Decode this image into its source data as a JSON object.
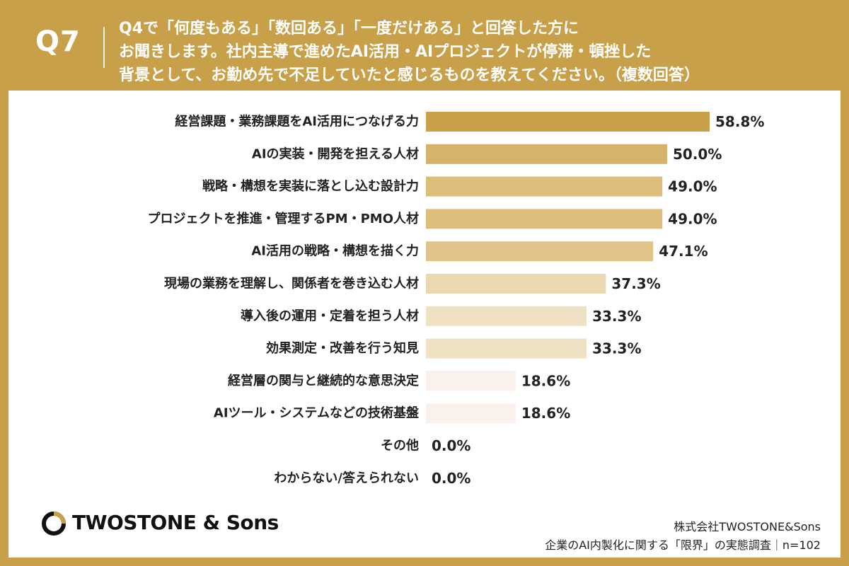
{
  "header": {
    "question_no": "Q7",
    "question_lines": [
      "Q4で「何度もある」「数回ある」「一度だけある」と回答した方に",
      "お聞きします。社内主導で進めたAI活用・AIプロジェクトが停滞・頓挫した",
      "背景として、お勤め先で不足していたと感じるものを教えてください。（複数回答）"
    ]
  },
  "chart_data": {
    "type": "bar",
    "orientation": "horizontal",
    "categories": [
      "経営課題・業務課題をAI活用につなげる力",
      "AIの実装・開発を担える人材",
      "戦略・構想を実装に落とし込む設計力",
      "プロジェクトを推進・管理するPM・PMO人材",
      "AI活用の戦略・構想を描く力",
      "現場の業務を理解し、関係者を巻き込む人材",
      "導入後の運用・定着を担う人材",
      "効果測定・改善を行う知見",
      "経営層の関与と継続的な意思決定",
      "AIツール・システムなどの技術基盤",
      "その他",
      "わからない/答えられない"
    ],
    "values": [
      58.8,
      50.0,
      49.0,
      49.0,
      47.1,
      37.3,
      33.3,
      33.3,
      18.6,
      18.6,
      0.0,
      0.0
    ],
    "value_labels": [
      "58.8%",
      "50.0%",
      "49.0%",
      "49.0%",
      "47.1%",
      "37.3%",
      "33.3%",
      "33.3%",
      "18.6%",
      "18.6%",
      "0.0%",
      "0.0%"
    ],
    "colors": [
      "#c9a04a",
      "#d6b36a",
      "#dcbd7c",
      "#dcbd7c",
      "#e0c489",
      "#ead8b0",
      "#efe1c4",
      "#efe1c4",
      "#fbf1ec",
      "#fbf1ec",
      "#ffffff",
      "#ffffff"
    ],
    "xlim": [
      0,
      100
    ],
    "grid": false,
    "legend": "none"
  },
  "footer": {
    "brand": "TWOSTONE & Sons",
    "source_line1": "株式会社TWOSTONE&Sons",
    "source_line2": "企業のAI内製化に関する「限界」の実態調査｜n=102"
  }
}
